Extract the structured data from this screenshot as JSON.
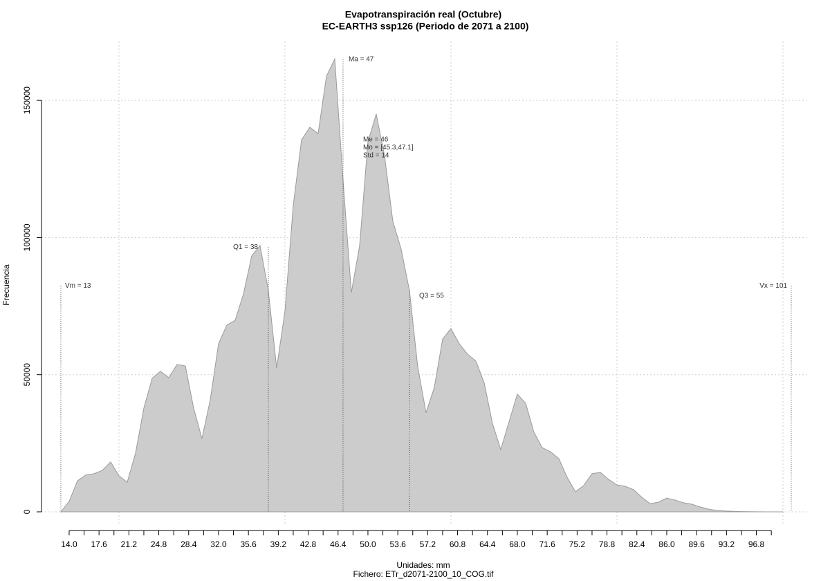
{
  "chart_data": {
    "type": "area",
    "title": "Evapotranspiración real (Octubre)",
    "subtitle": "EC-EARTH3 ssp126 (Periodo de 2071 a 2100)",
    "x_label": "Unidades: mm",
    "y_label": "Frecuencia",
    "caption": "Fichero: ETr_d2071-2100_10_COG.tif",
    "color": "#cccccc",
    "line_color": "#9a9a9a",
    "x": [
      13,
      14,
      15,
      16,
      17,
      18,
      19,
      20,
      21,
      22,
      23,
      24,
      25,
      26,
      27,
      28,
      29,
      30,
      31,
      32,
      33,
      34,
      35,
      36,
      37,
      38,
      39,
      40,
      41,
      42,
      43,
      44,
      45,
      46,
      47,
      48,
      49,
      50,
      51,
      52,
      53,
      54,
      55,
      56,
      57,
      58,
      59,
      60,
      61,
      62,
      63,
      64,
      65,
      66,
      67,
      68,
      69,
      70,
      71,
      72,
      73,
      74,
      75,
      76,
      77,
      78,
      79,
      80,
      81,
      82,
      83,
      84,
      85,
      86,
      87,
      88,
      89,
      90,
      91,
      92,
      93,
      94,
      95,
      96,
      97,
      98,
      99,
      100
    ],
    "values": [
      0,
      3800,
      11300,
      13400,
      13900,
      15100,
      18200,
      13100,
      10800,
      21400,
      37800,
      48700,
      51200,
      48900,
      53700,
      53200,
      37800,
      26700,
      40800,
      61300,
      68100,
      69800,
      79400,
      93300,
      97100,
      80700,
      52400,
      73100,
      111700,
      135600,
      140200,
      137900,
      158800,
      165100,
      121000,
      79900,
      97100,
      134900,
      145000,
      129800,
      105900,
      95800,
      80700,
      52900,
      36100,
      45400,
      63000,
      66800,
      61300,
      57500,
      55000,
      47100,
      32300,
      22700,
      32800,
      42900,
      39600,
      29000,
      23400,
      21900,
      19400,
      12600,
      7300,
      9600,
      13900,
      14400,
      11800,
      9800,
      9300,
      8100,
      5300,
      3000,
      3500,
      5000,
      4300,
      3300,
      2800,
      1800,
      1000,
      500,
      300,
      200,
      100,
      50,
      20,
      10,
      5,
      0
    ],
    "xlim": [
      10.67,
      103.17
    ],
    "ylim": [
      -5043,
      171460
    ],
    "xticks": [
      {
        "value": 14,
        "label": "14.0"
      },
      {
        "value": 17.6,
        "label": "17.6"
      },
      {
        "value": 21.2,
        "label": "21.2"
      },
      {
        "value": 24.8,
        "label": "24.8"
      },
      {
        "value": 28.4,
        "label": "28.4"
      },
      {
        "value": 32,
        "label": "32.0"
      },
      {
        "value": 35.6,
        "label": "35.6"
      },
      {
        "value": 39.2,
        "label": "39.2"
      },
      {
        "value": 42.8,
        "label": "42.8"
      },
      {
        "value": 46.4,
        "label": "46.4"
      },
      {
        "value": 50,
        "label": "50.0"
      },
      {
        "value": 53.6,
        "label": "53.6"
      },
      {
        "value": 57.2,
        "label": "57.2"
      },
      {
        "value": 60.8,
        "label": "60.8"
      },
      {
        "value": 64.4,
        "label": "64.4"
      },
      {
        "value": 68,
        "label": "68.0"
      },
      {
        "value": 71.6,
        "label": "71.6"
      },
      {
        "value": 75.2,
        "label": "75.2"
      },
      {
        "value": 78.8,
        "label": "78.8"
      },
      {
        "value": 82.4,
        "label": "82.4"
      },
      {
        "value": 86,
        "label": "86.0"
      },
      {
        "value": 89.6,
        "label": "89.6"
      },
      {
        "value": 93.2,
        "label": "93.2"
      },
      {
        "value": 96.8,
        "label": "96.8"
      }
    ],
    "xminorticks": [
      15.8,
      19.4,
      23,
      26.6,
      30.2,
      33.8,
      37.4,
      41,
      44.6,
      48.2,
      51.8,
      55.4,
      59,
      62.6,
      66.2,
      69.8,
      73.4,
      77,
      80.6,
      84.2,
      87.8,
      91.4,
      95,
      98.6
    ],
    "yticks": [
      0,
      50000,
      100000,
      150000
    ],
    "xgrid": [
      20,
      40,
      60,
      80,
      100
    ],
    "grid": true,
    "annotations": [
      {
        "label": "Vm = 13",
        "x": 13,
        "y": 82400
      },
      {
        "label": "Q1 = 38",
        "x": 38,
        "y": 96500
      },
      {
        "label": "Ma = 47",
        "x": 47,
        "y": 165000
      },
      {
        "label": "Q3 = 55",
        "x": 55,
        "y": 80700
      },
      {
        "label": "Vx = 101",
        "x": 101,
        "y": 82400
      }
    ],
    "stats": [
      "Me = 46",
      "Mo = [45.3,47.1]",
      "Std = 14"
    ]
  }
}
